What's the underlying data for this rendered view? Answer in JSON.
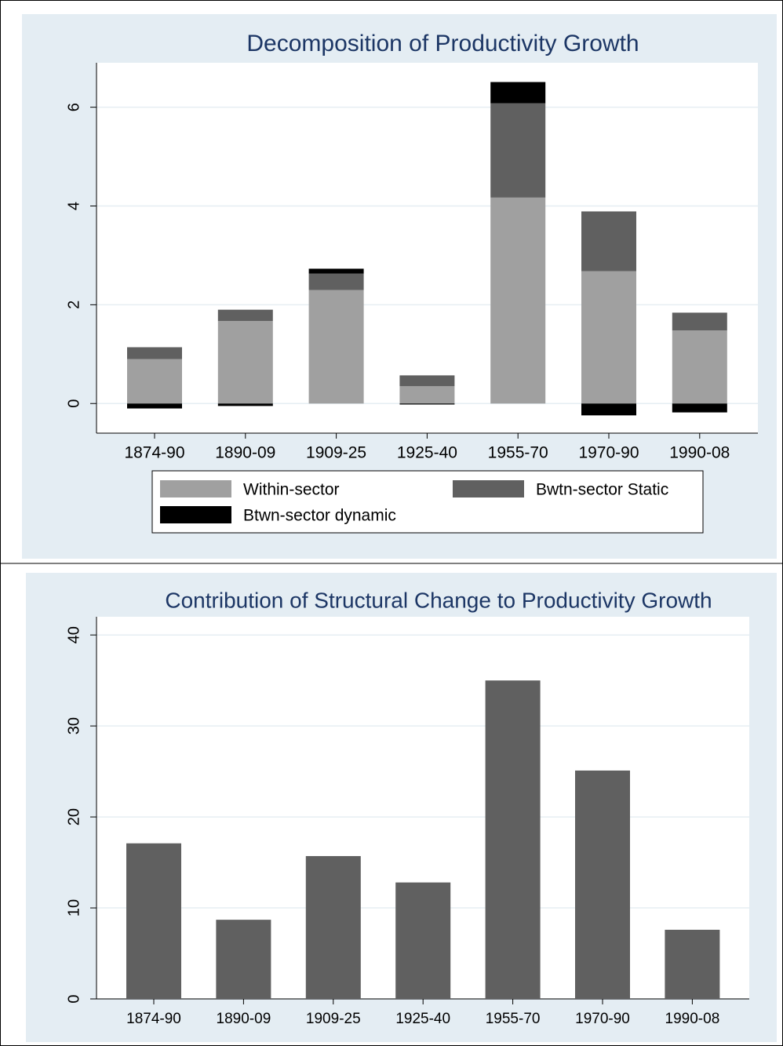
{
  "chart_data": [
    {
      "type": "bar",
      "stacked": true,
      "title": "Decomposition of Productivity Growth",
      "categories": [
        "1874-90",
        "1890-09",
        "1909-25",
        "1925-40",
        "1955-70",
        "1970-90",
        "1990-08"
      ],
      "series": [
        {
          "name": "Within-sector",
          "color": "#a0a0a0",
          "values": [
            0.9,
            1.67,
            2.3,
            0.35,
            4.17,
            2.68,
            1.48
          ]
        },
        {
          "name": "Bwtn-sector Static",
          "color": "#606060",
          "values": [
            0.24,
            0.23,
            0.33,
            0.22,
            1.91,
            1.21,
            0.36
          ]
        },
        {
          "name": "Btwn-sector dynamic",
          "color": "#000000",
          "values": [
            -0.1,
            -0.05,
            0.1,
            -0.02,
            0.43,
            -0.24,
            -0.18
          ]
        }
      ],
      "ylim": [
        -0.6,
        6.9
      ],
      "yticks": [
        0,
        2,
        4,
        6
      ],
      "grid": true,
      "legend": "bottom"
    },
    {
      "type": "bar",
      "title": "Contribution of Structural Change to Productivity Growth",
      "categories": [
        "1874-90",
        "1890-09",
        "1909-25",
        "1925-40",
        "1955-70",
        "1970-90",
        "1990-08"
      ],
      "values": [
        17.1,
        8.7,
        15.7,
        12.8,
        35.0,
        25.1,
        7.6
      ],
      "color": "#606060",
      "ylim": [
        0,
        42
      ],
      "yticks": [
        0,
        10,
        20,
        30,
        40
      ],
      "grid": true
    }
  ]
}
